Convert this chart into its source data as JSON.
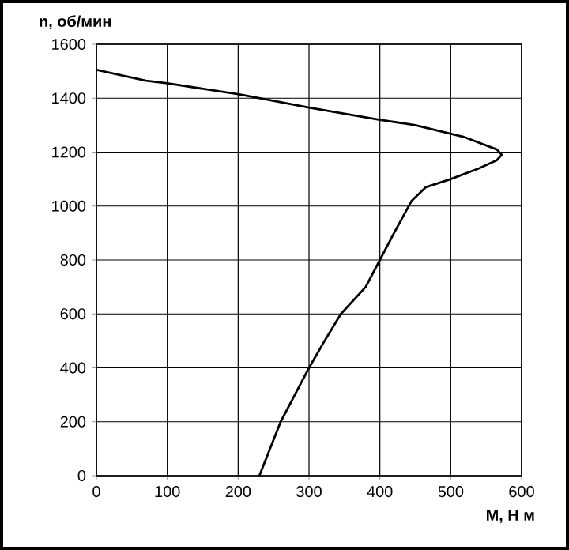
{
  "chart_data": {
    "type": "line",
    "xlabel": "М, Н м",
    "ylabel": "n, об/мин",
    "xlim": [
      0,
      600
    ],
    "ylim": [
      0,
      1600
    ],
    "xticks": [
      0,
      100,
      200,
      300,
      400,
      500,
      600
    ],
    "yticks": [
      0,
      200,
      400,
      600,
      800,
      1000,
      1200,
      1400,
      1600
    ],
    "grid": true,
    "marker": "none",
    "line_style": "solid",
    "series": [
      {
        "color": "#000000",
        "x": [
          230,
          245,
          260,
          280,
          300,
          322,
          345,
          380,
          400,
          420,
          445,
          465,
          500,
          540,
          565,
          572,
          565,
          520,
          450,
          400,
          300,
          240,
          200,
          100,
          70,
          0
        ],
        "values": [
          0,
          100,
          200,
          300,
          400,
          500,
          600,
          700,
          800,
          900,
          1020,
          1070,
          1100,
          1140,
          1170,
          1190,
          1210,
          1255,
          1300,
          1320,
          1365,
          1395,
          1415,
          1455,
          1465,
          1505
        ]
      }
    ]
  }
}
